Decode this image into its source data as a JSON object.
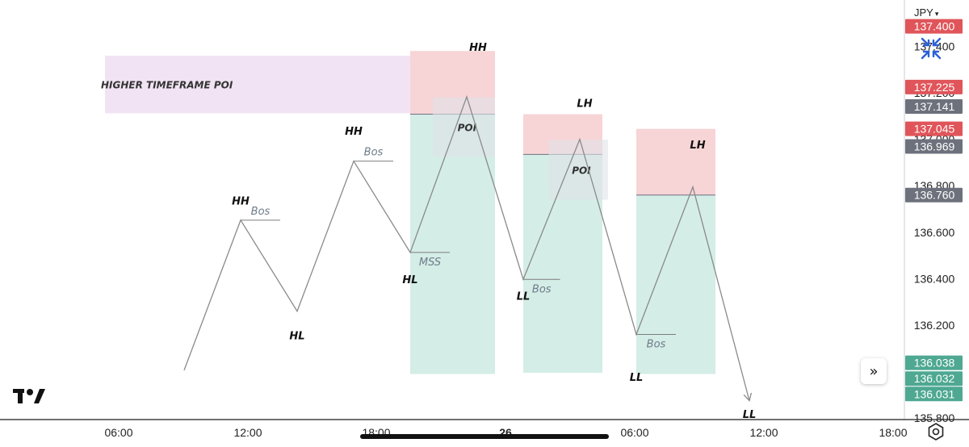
{
  "header": {
    "currency": "JPY"
  },
  "chart_data": {
    "type": "line",
    "title": "",
    "xlabel": "",
    "ylabel": "",
    "x_ticks": [
      "06:00",
      "12:00",
      "18:00",
      "26",
      "06:00",
      "12:00",
      "18:00"
    ],
    "y_ticks": [
      "136.800",
      "136.600",
      "136.400",
      "136.200",
      "135.800"
    ],
    "y_ticks_partial": [
      "137.400",
      "137.200",
      "137.000"
    ],
    "ylim": [
      135.7,
      137.53
    ],
    "price_path": [
      {
        "t": 0,
        "y": 136.006
      },
      {
        "t": 1,
        "y": 136.652
      },
      {
        "t": 2,
        "y": 136.26
      },
      {
        "t": 3,
        "y": 136.906
      },
      {
        "t": 4,
        "y": 136.513
      },
      {
        "t": 5,
        "y": 137.183
      },
      {
        "t": 6,
        "y": 136.397
      },
      {
        "t": 7,
        "y": 137.0
      },
      {
        "t": 8,
        "y": 136.16
      },
      {
        "t": 9,
        "y": 136.795
      },
      {
        "t": 10,
        "y": 135.875
      }
    ],
    "swing_labels": [
      {
        "text": "HH",
        "t": 1,
        "y": 136.72
      },
      {
        "text": "HL",
        "t": 2,
        "y": 136.14
      },
      {
        "text": "HH",
        "t": 3,
        "y": 137.02
      },
      {
        "text": "HL",
        "t": 4,
        "y": 136.38
      },
      {
        "text": "HH",
        "t": 5,
        "y": 137.38
      },
      {
        "text": "LH",
        "t": 7,
        "y": 137.14
      },
      {
        "text": "LL",
        "t": 6,
        "y": 136.31
      },
      {
        "text": "LH",
        "t": 9,
        "y": 136.96
      },
      {
        "text": "LL",
        "t": 8,
        "y": 135.96
      },
      {
        "text": "LL",
        "t": 10,
        "y": 135.8
      }
    ],
    "structure_lines": [
      {
        "text": "Bos",
        "t_start": 1,
        "t_end": 1.7,
        "y": 136.652
      },
      {
        "text": "Bos",
        "t_start": 3,
        "t_end": 3.7,
        "y": 136.906
      },
      {
        "text": "MSS",
        "t_start": 4,
        "t_end": 4.7,
        "y": 136.513
      },
      {
        "text": "Bos",
        "t_start": 6,
        "t_end": 6.65,
        "y": 136.397
      },
      {
        "text": "Bos",
        "t_start": 8,
        "t_end": 8.7,
        "y": 136.16
      }
    ],
    "zones": [
      {
        "kind": "htf",
        "text": "HIGHER TIMEFRAME POI",
        "t_start": -1.4,
        "t_end": 4.0,
        "y_top": 137.36,
        "y_bottom": 137.112
      },
      {
        "kind": "poi",
        "text": "POI",
        "t_start": 4.4,
        "t_end": 5.5,
        "y_top": 137.18,
        "y_bottom": 136.925
      },
      {
        "kind": "poi",
        "text": "POI",
        "t_start": 6.45,
        "t_end": 7.5,
        "y_top": 136.998,
        "y_bottom": 136.74
      },
      {
        "kind": "position",
        "t_start": 4.0,
        "t_end": 5.5,
        "entry": 137.108,
        "stop": 137.38,
        "target": 135.99
      },
      {
        "kind": "position",
        "t_start": 6.0,
        "t_end": 7.4,
        "entry": 136.935,
        "stop": 137.108,
        "target": 135.995
      },
      {
        "kind": "position",
        "t_start": 8.0,
        "t_end": 9.4,
        "entry": 136.76,
        "stop": 137.045,
        "target": 135.99
      }
    ],
    "price_badges": [
      {
        "text": "137.400",
        "y": 137.486,
        "color": "#e0555a"
      },
      {
        "text": "137.225",
        "y": 137.225,
        "color": "#e0555a"
      },
      {
        "text": "137.141",
        "y": 137.141,
        "color": "#6d717c"
      },
      {
        "text": "137.045",
        "y": 137.045,
        "color": "#e0555a"
      },
      {
        "text": "136.969",
        "y": 136.969,
        "color": "#6d717c"
      },
      {
        "text": "136.760",
        "y": 136.76,
        "color": "#6d717c"
      },
      {
        "text": "136.038",
        "y": 136.038,
        "color": "#4ea892"
      },
      {
        "text": "136.032",
        "y": 135.97,
        "color": "#4ea892"
      },
      {
        "text": "136.031",
        "y": 135.904,
        "color": "#4ea892"
      }
    ],
    "colors": {
      "line": "#8a8a8a",
      "loss_zone": "#f4c5c8",
      "profit_zone": "#bde3da",
      "poi_zone": "#dfe3e8",
      "htf_zone": "#ecd9f0",
      "structure_line": "#7d7d7d"
    },
    "grid": false,
    "legend": "none"
  }
}
